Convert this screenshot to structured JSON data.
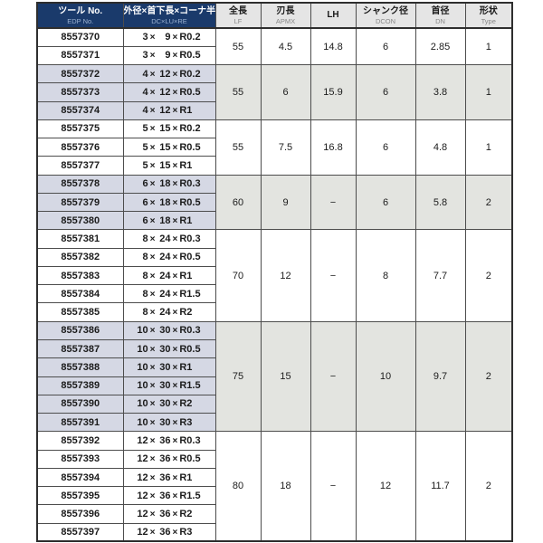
{
  "times_symbol": "×",
  "header": {
    "columns": [
      {
        "main": "ツール No.",
        "sub": "EDP No.",
        "style": "navy",
        "key": "edp"
      },
      {
        "main": "外径×首下長×コーナ半径",
        "sub": "DC×LU×RE",
        "style": "navy",
        "key": "dim"
      },
      {
        "main": "全長",
        "sub": "LF",
        "style": "gray",
        "key": "lf"
      },
      {
        "main": "刃長",
        "sub": "APMX",
        "style": "gray",
        "key": "apmx"
      },
      {
        "main": "LH",
        "sub": "",
        "style": "gray",
        "key": "lh"
      },
      {
        "main": "シャンク径",
        "sub": "DCON",
        "style": "gray",
        "key": "dcon"
      },
      {
        "main": "首径",
        "sub": "DN",
        "style": "gray",
        "key": "dn"
      },
      {
        "main": "形状",
        "sub": "Type",
        "style": "gray",
        "key": "type"
      }
    ]
  },
  "groups": [
    {
      "tinted": false,
      "rows": [
        {
          "edp": "8557370",
          "dc": "3",
          "lu": "9",
          "re": "R0.2"
        },
        {
          "edp": "8557371",
          "dc": "3",
          "lu": "9",
          "re": "R0.5"
        }
      ],
      "shared": {
        "lf": "55",
        "apmx": "4.5",
        "lh": "14.8",
        "dcon": "6",
        "dn": "2.85",
        "type": "1"
      }
    },
    {
      "tinted": true,
      "rows": [
        {
          "edp": "8557372",
          "dc": "4",
          "lu": "12",
          "re": "R0.2"
        },
        {
          "edp": "8557373",
          "dc": "4",
          "lu": "12",
          "re": "R0.5"
        },
        {
          "edp": "8557374",
          "dc": "4",
          "lu": "12",
          "re": "R1"
        }
      ],
      "shared": {
        "lf": "55",
        "apmx": "6",
        "lh": "15.9",
        "dcon": "6",
        "dn": "3.8",
        "type": "1"
      }
    },
    {
      "tinted": false,
      "rows": [
        {
          "edp": "8557375",
          "dc": "5",
          "lu": "15",
          "re": "R0.2"
        },
        {
          "edp": "8557376",
          "dc": "5",
          "lu": "15",
          "re": "R0.5"
        },
        {
          "edp": "8557377",
          "dc": "5",
          "lu": "15",
          "re": "R1"
        }
      ],
      "shared": {
        "lf": "55",
        "apmx": "7.5",
        "lh": "16.8",
        "dcon": "6",
        "dn": "4.8",
        "type": "1"
      }
    },
    {
      "tinted": true,
      "rows": [
        {
          "edp": "8557378",
          "dc": "6",
          "lu": "18",
          "re": "R0.3"
        },
        {
          "edp": "8557379",
          "dc": "6",
          "lu": "18",
          "re": "R0.5"
        },
        {
          "edp": "8557380",
          "dc": "6",
          "lu": "18",
          "re": "R1"
        }
      ],
      "shared": {
        "lf": "60",
        "apmx": "9",
        "lh": "−",
        "dcon": "6",
        "dn": "5.8",
        "type": "2"
      }
    },
    {
      "tinted": false,
      "rows": [
        {
          "edp": "8557381",
          "dc": "8",
          "lu": "24",
          "re": "R0.3"
        },
        {
          "edp": "8557382",
          "dc": "8",
          "lu": "24",
          "re": "R0.5"
        },
        {
          "edp": "8557383",
          "dc": "8",
          "lu": "24",
          "re": "R1"
        },
        {
          "edp": "8557384",
          "dc": "8",
          "lu": "24",
          "re": "R1.5"
        },
        {
          "edp": "8557385",
          "dc": "8",
          "lu": "24",
          "re": "R2"
        }
      ],
      "shared": {
        "lf": "70",
        "apmx": "12",
        "lh": "−",
        "dcon": "8",
        "dn": "7.7",
        "type": "2"
      }
    },
    {
      "tinted": true,
      "rows": [
        {
          "edp": "8557386",
          "dc": "10",
          "lu": "30",
          "re": "R0.3"
        },
        {
          "edp": "8557387",
          "dc": "10",
          "lu": "30",
          "re": "R0.5"
        },
        {
          "edp": "8557388",
          "dc": "10",
          "lu": "30",
          "re": "R1"
        },
        {
          "edp": "8557389",
          "dc": "10",
          "lu": "30",
          "re": "R1.5"
        },
        {
          "edp": "8557390",
          "dc": "10",
          "lu": "30",
          "re": "R2"
        },
        {
          "edp": "8557391",
          "dc": "10",
          "lu": "30",
          "re": "R3"
        }
      ],
      "shared": {
        "lf": "75",
        "apmx": "15",
        "lh": "−",
        "dcon": "10",
        "dn": "9.7",
        "type": "2"
      }
    },
    {
      "tinted": false,
      "rows": [
        {
          "edp": "8557392",
          "dc": "12",
          "lu": "36",
          "re": "R0.3"
        },
        {
          "edp": "8557393",
          "dc": "12",
          "lu": "36",
          "re": "R0.5"
        },
        {
          "edp": "8557394",
          "dc": "12",
          "lu": "36",
          "re": "R1"
        },
        {
          "edp": "8557395",
          "dc": "12",
          "lu": "36",
          "re": "R1.5"
        },
        {
          "edp": "8557396",
          "dc": "12",
          "lu": "36",
          "re": "R2"
        },
        {
          "edp": "8557397",
          "dc": "12",
          "lu": "36",
          "re": "R3"
        }
      ],
      "shared": {
        "lf": "80",
        "apmx": "18",
        "lh": "−",
        "dcon": "12",
        "dn": "11.7",
        "type": "2"
      }
    }
  ],
  "colors": {
    "header_navy": "#1a3a6b",
    "header_navy_sub": "#9db3d2",
    "header_gray": "#e5e5e5",
    "header_gray_sub": "#878787",
    "tint_row": "#d5d8e4",
    "tint_numeric": "#e3e4e0",
    "border": "#4d4d4d",
    "text": "#1b1b1b"
  }
}
